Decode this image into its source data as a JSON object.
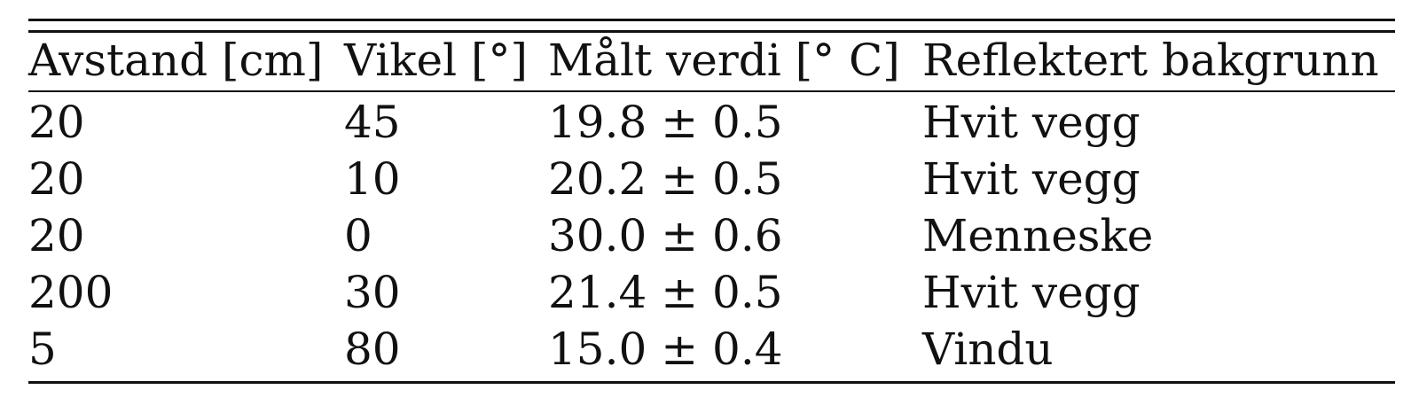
{
  "table": {
    "headers": [
      "Avstand [cm]",
      "Vikel [°]",
      "Målt verdi [° C]",
      "Reflektert bakgrunn"
    ],
    "rows": [
      [
        "20",
        "45",
        "19.8 ± 0.5",
        "Hvit vegg"
      ],
      [
        "20",
        "10",
        "20.2 ± 0.5",
        "Hvit vegg"
      ],
      [
        "20",
        "0",
        "30.0 ± 0.6",
        "Menneske"
      ],
      [
        "200",
        "30",
        "21.4 ± 0.5",
        "Hvit vegg"
      ],
      [
        "5",
        "80",
        "15.0 ± 0.4",
        "Vindu"
      ]
    ]
  }
}
